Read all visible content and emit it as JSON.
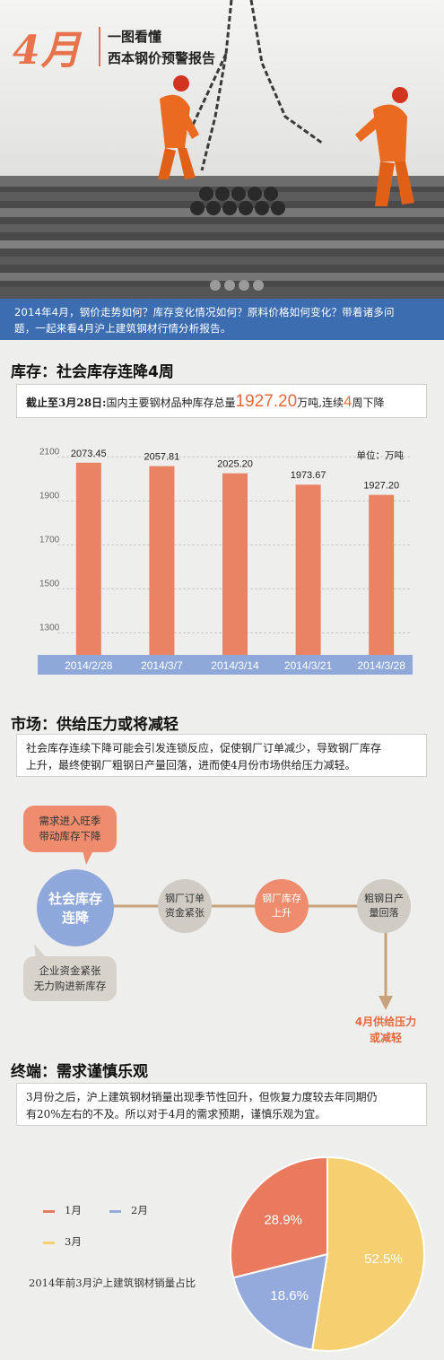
{
  "header": {
    "month": "4月",
    "title_line1": "一图看懂",
    "title_line2": "西本钢价预警报告",
    "intro_line1": "2014年4月，钢价走势如何？库存变化情况如何？原料价格如何变化？带着诸多问",
    "intro_line2": "题，一起来看4月沪上建筑钢材行情分析报告。"
  },
  "inventory": {
    "heading": "库存：社会库存连降4周",
    "callout_prefix": "截止至3月28日:",
    "callout_text1": "国内主要钢材品种库存总量",
    "callout_value": "1927.20",
    "callout_text2": "万吨,连续",
    "callout_weeks": "4",
    "callout_text3": "周下降"
  },
  "chart_data": {
    "type": "bar",
    "categories": [
      "2014/2/28",
      "2014/3/7",
      "2014/3/14",
      "2014/3/21",
      "2014/3/28"
    ],
    "values": [
      2073.45,
      2057.81,
      2025.2,
      1973.67,
      1927.2
    ],
    "value_labels": [
      "2073.45",
      "2057.81",
      "2025.20",
      "1973.67",
      "1927.20"
    ],
    "yticks": [
      "2100",
      "1900",
      "1700",
      "1500",
      "1300"
    ],
    "ylim": [
      1200,
      2150
    ],
    "unit": "单位：万吨",
    "grid": true,
    "bar_color": "#ea8264",
    "axis_band_color": "#8ea8d9"
  },
  "market": {
    "heading": "市场：供给压力或将减轻",
    "callout_line1": "社会库存连续下降可能会引发连锁反应，促使钢厂订单减少，导致钢厂库存",
    "callout_line2": "上升，最终使钢厂粗钢日产量回落，进而使4月份市场供给压力减轻。",
    "bubble_top_line1": "需求进入旺季",
    "bubble_top_line2": "带动库存下降",
    "main_node_line1": "社会库存",
    "main_node_line2": "连降",
    "node1_line1": "钢厂订单",
    "node1_line2": "资金紧张",
    "node2_line1": "钢厂库存",
    "node2_line2": "上升",
    "node3_line1": "粗钢日产",
    "node3_line2": "量回落",
    "bubble_bottom_line1": "企业资金紧张",
    "bubble_bottom_line2": "无力购进新库存",
    "result_line1": "4月供给压力",
    "result_line2": "或减轻",
    "colors": {
      "main": "#8fa8dc",
      "top_bubble": "#ee8c6d",
      "node": "#d0ccc4",
      "node_highlight": "#ee8c6d",
      "arrow": "#c8a27a",
      "result": "#e8683e"
    }
  },
  "demand": {
    "heading": "终端：需求谨慎乐观",
    "callout_line1": "3月份之后，沪上建筑钢材销量出现季节性回升，但恢复力度较去年同期仍",
    "callout_line2": "有20%左右的不及。所以对于4月的需求预期，谨慎乐观为宜。"
  },
  "pie": {
    "caption": "2014年前3月沪上建筑钢材销量占比",
    "slices": [
      {
        "label": "1月",
        "value": 28.9,
        "text": "28.9%",
        "color": "#ea7a5e"
      },
      {
        "label": "2月",
        "value": 18.6,
        "text": "18.6%",
        "color": "#94a9dc"
      },
      {
        "label": "3月",
        "value": 52.5,
        "text": "52.5%",
        "color": "#f5cf70"
      }
    ]
  }
}
